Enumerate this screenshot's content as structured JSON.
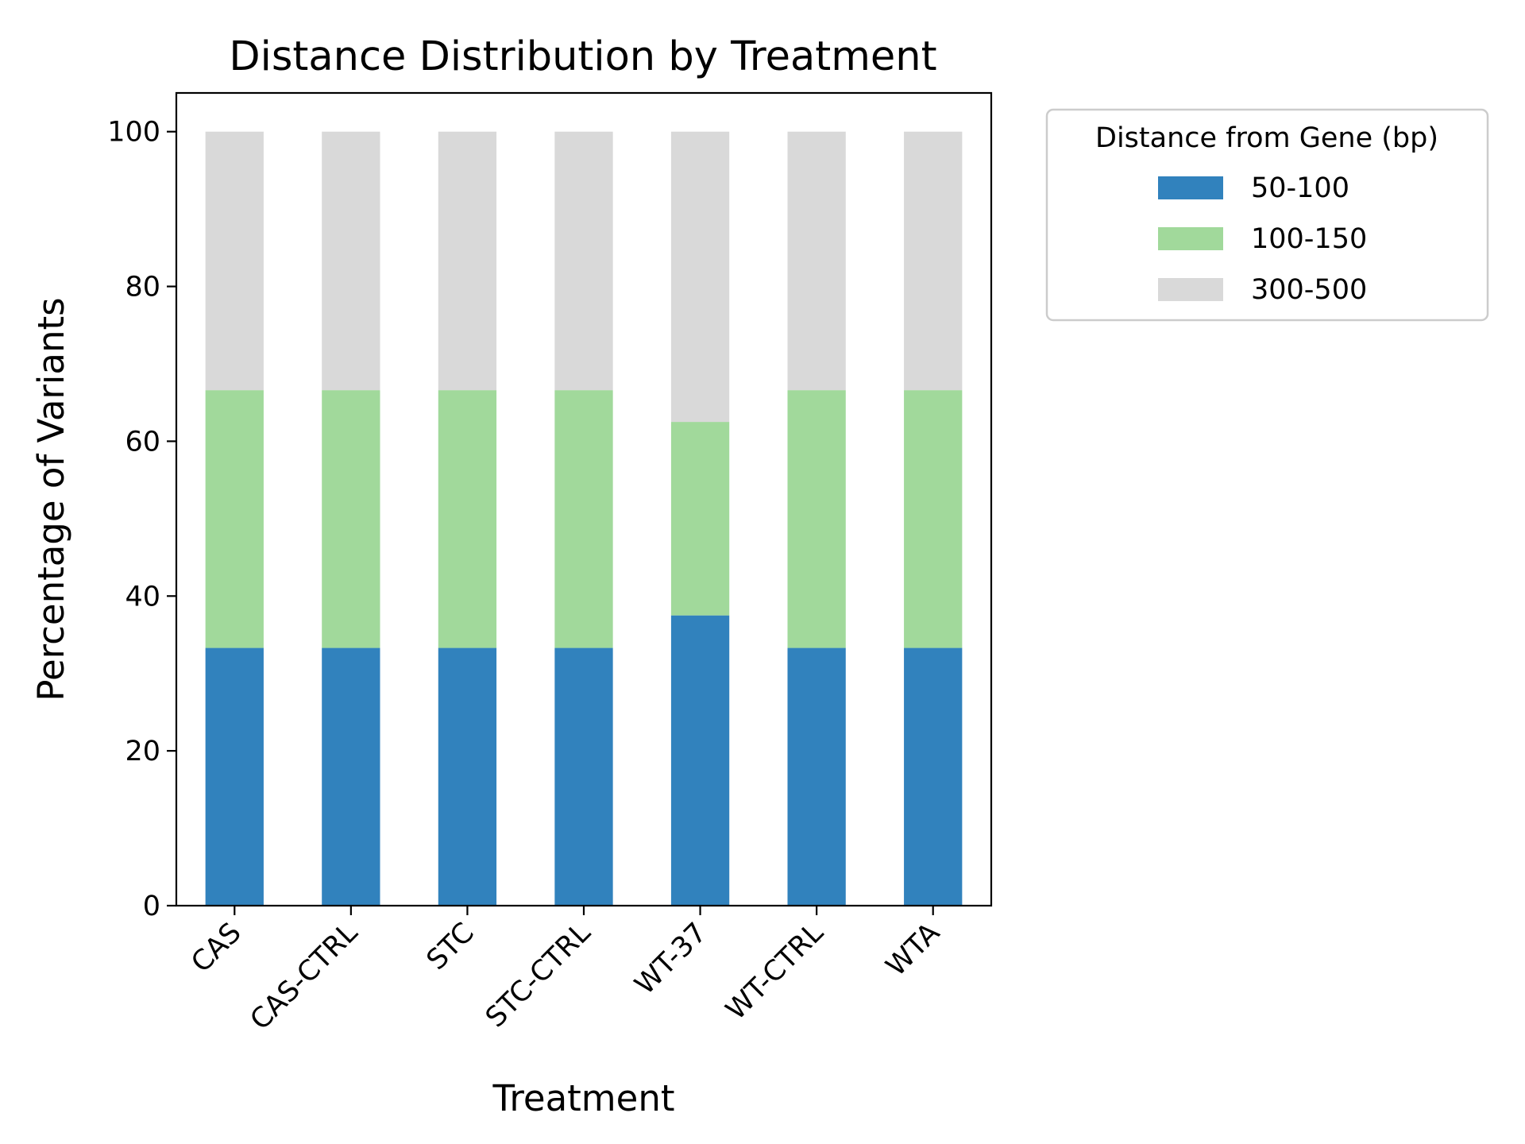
{
  "chart_data": {
    "type": "bar",
    "stacked": true,
    "title": "Distance Distribution by Treatment",
    "xlabel": "Treatment",
    "ylabel": "Percentage of Variants",
    "ylim": [
      0,
      105
    ],
    "yticks": [
      0,
      20,
      40,
      60,
      80,
      100
    ],
    "grid": false,
    "categories": [
      "CAS",
      "CAS-CTRL",
      "STC",
      "STC-CTRL",
      "WT-37",
      "WT-CTRL",
      "WTA"
    ],
    "legend": {
      "title": "Distance from Gene (bp)",
      "placement": "outside-top-right"
    },
    "series": [
      {
        "name": "50-100",
        "color": "#3182bd",
        "values": [
          33.3,
          33.3,
          33.3,
          33.3,
          37.5,
          33.3,
          33.3
        ]
      },
      {
        "name": "100-150",
        "color": "#a1d99b",
        "values": [
          33.3,
          33.3,
          33.3,
          33.3,
          25.0,
          33.3,
          33.3
        ]
      },
      {
        "name": "300-500",
        "color": "#d9d9d9",
        "values": [
          33.4,
          33.4,
          33.4,
          33.4,
          37.5,
          33.4,
          33.4
        ]
      }
    ]
  }
}
